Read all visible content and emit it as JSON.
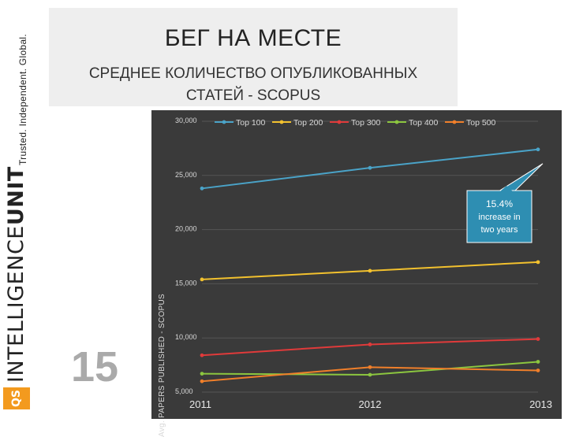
{
  "sidebar": {
    "tagline": "Trusted. Independent. Global.",
    "logo_mark": "QS",
    "logo_word_a": "INTELLIGENCE",
    "logo_word_b": "UNIT"
  },
  "slide": {
    "title": "БЕГ НА МЕСТЕ",
    "subtitle_line1": "СРЕДНЕЕ КОЛИЧЕСТВО ОПУБЛИКОВАННЫХ",
    "subtitle_line2": "СТАТЕЙ - SCOPUS",
    "page_number": "15"
  },
  "chart_data": {
    "type": "line",
    "title": "",
    "xlabel": "",
    "ylabel": "Avg. PAPERS PUBLISHED - SCOPUS",
    "x": [
      "2011",
      "2012",
      "2013"
    ],
    "ylim": [
      5000,
      30000
    ],
    "yticks": [
      "30,000",
      "25,000",
      "20,000",
      "15,000",
      "10,000",
      "5,000"
    ],
    "ytick_values": [
      30000,
      25000,
      20000,
      15000,
      10000,
      5000
    ],
    "legend_position": "top",
    "series": [
      {
        "name": "Top 100",
        "color": "#4aa3c8",
        "values": [
          23800,
          25700,
          27400
        ]
      },
      {
        "name": "Top 200",
        "color": "#f2c12e",
        "values": [
          15400,
          16200,
          17000
        ]
      },
      {
        "name": "Top 300",
        "color": "#e03a3a",
        "values": [
          8400,
          9400,
          9900
        ]
      },
      {
        "name": "Top 400",
        "color": "#8cc63f",
        "values": [
          6700,
          6600,
          7800
        ]
      },
      {
        "name": "Top 500",
        "color": "#f07f2a",
        "values": [
          6000,
          7300,
          7000
        ]
      }
    ],
    "annotation": {
      "line1": "15.4%",
      "line2": "increase in",
      "line3": "two years",
      "fill": "#2e8eb2"
    }
  }
}
